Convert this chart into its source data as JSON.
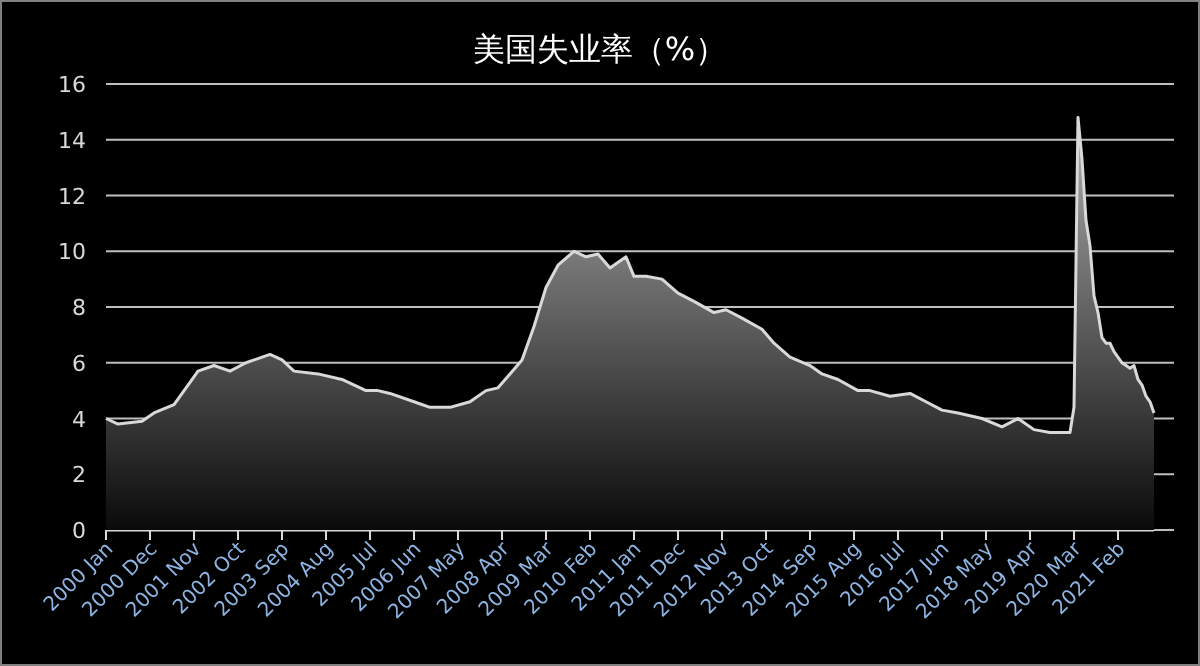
{
  "chart_data": {
    "type": "area",
    "title": "美国失业率（%）",
    "x": [
      "2000-01",
      "2000-04",
      "2000-10",
      "2001-01",
      "2001-06",
      "2001-10",
      "2001-12",
      "2002-04",
      "2002-08",
      "2002-12",
      "2003-06",
      "2003-09",
      "2003-12",
      "2004-06",
      "2004-12",
      "2005-06",
      "2005-09",
      "2005-12",
      "2006-06",
      "2006-10",
      "2007-03",
      "2007-08",
      "2007-12",
      "2008-03",
      "2008-06",
      "2008-09",
      "2008-12",
      "2009-03",
      "2009-06",
      "2009-10",
      "2010-01",
      "2010-04",
      "2010-07",
      "2010-11",
      "2011-01",
      "2011-04",
      "2011-08",
      "2011-12",
      "2012-04",
      "2012-09",
      "2012-12",
      "2013-04",
      "2013-09",
      "2013-12",
      "2014-04",
      "2014-09",
      "2014-12",
      "2015-04",
      "2015-09",
      "2015-12",
      "2016-05",
      "2016-10",
      "2017-02",
      "2017-06",
      "2017-10",
      "2018-04",
      "2018-09",
      "2019-01",
      "2019-05",
      "2019-09",
      "2020-01",
      "2020-02",
      "2020-03",
      "2020-04",
      "2020-05",
      "2020-06",
      "2020-07",
      "2020-08",
      "2020-09",
      "2020-10",
      "2020-11",
      "2020-12",
      "2021-01",
      "2021-03",
      "2021-05",
      "2021-06",
      "2021-07",
      "2021-08",
      "2021-09",
      "2021-10",
      "2021-11"
    ],
    "series": [
      {
        "color": "#d9d9d9",
        "values": [
          4.0,
          3.8,
          3.9,
          4.2,
          4.5,
          5.3,
          5.7,
          5.9,
          5.7,
          6.0,
          6.3,
          6.1,
          5.7,
          5.6,
          5.4,
          5.0,
          5.0,
          4.9,
          4.6,
          4.4,
          4.4,
          4.6,
          5.0,
          5.1,
          5.6,
          6.1,
          7.3,
          8.7,
          9.5,
          10.0,
          9.8,
          9.9,
          9.4,
          9.8,
          9.1,
          9.1,
          9.0,
          8.5,
          8.2,
          7.8,
          7.9,
          7.6,
          7.2,
          6.7,
          6.2,
          5.9,
          5.6,
          5.4,
          5.0,
          5.0,
          4.8,
          4.9,
          4.6,
          4.3,
          4.2,
          4.0,
          3.7,
          4.0,
          3.6,
          3.5,
          3.5,
          3.5,
          4.4,
          14.8,
          13.3,
          11.1,
          10.2,
          8.4,
          7.8,
          6.9,
          6.7,
          6.7,
          6.4,
          6.0,
          5.8,
          5.9,
          5.4,
          5.2,
          4.8,
          4.6,
          4.2
        ]
      }
    ],
    "xlim": [
      "2000-01",
      "2021-11"
    ],
    "xticks": [
      {
        "value": "2000-01",
        "label": "2000 Jan"
      },
      {
        "value": "2000-12",
        "label": "2000 Dec"
      },
      {
        "value": "2001-11",
        "label": "2001 Nov"
      },
      {
        "value": "2002-10",
        "label": "2002 Oct"
      },
      {
        "value": "2003-09",
        "label": "2003 Sep"
      },
      {
        "value": "2004-08",
        "label": "2004 Aug"
      },
      {
        "value": "2005-07",
        "label": "2005 Jul"
      },
      {
        "value": "2006-06",
        "label": "2006 Jun"
      },
      {
        "value": "2007-05",
        "label": "2007 May"
      },
      {
        "value": "2008-04",
        "label": "2008 Apr"
      },
      {
        "value": "2009-03",
        "label": "2009 Mar"
      },
      {
        "value": "2010-02",
        "label": "2010 Feb"
      },
      {
        "value": "2011-01",
        "label": "2011 Jan"
      },
      {
        "value": "2011-12",
        "label": "2011 Dec"
      },
      {
        "value": "2012-11",
        "label": "2012 Nov"
      },
      {
        "value": "2013-10",
        "label": "2013 Oct"
      },
      {
        "value": "2014-09",
        "label": "2014 Sep"
      },
      {
        "value": "2015-08",
        "label": "2015 Aug"
      },
      {
        "value": "2016-07",
        "label": "2016 Jul"
      },
      {
        "value": "2017-06",
        "label": "2017 Jun"
      },
      {
        "value": "2018-05",
        "label": "2018 May"
      },
      {
        "value": "2019-04",
        "label": "2019 Apr"
      },
      {
        "value": "2020-03",
        "label": "2020 Mar"
      },
      {
        "value": "2021-02",
        "label": "2021 Feb"
      }
    ],
    "ylim": [
      0,
      16
    ],
    "yticks": [
      0,
      2,
      4,
      6,
      8,
      10,
      12,
      14,
      16
    ],
    "grid": "y"
  }
}
